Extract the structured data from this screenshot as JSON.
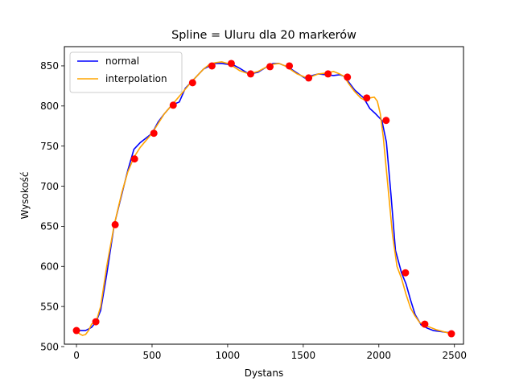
{
  "chart_data": {
    "type": "line",
    "title": "Spline = Uluru dla 20 markerów",
    "xlabel": "Dystans",
    "ylabel": "Wysokość",
    "xlim": [
      -80,
      2560
    ],
    "ylim": [
      503,
      874
    ],
    "xticks": [
      0,
      500,
      1000,
      1500,
      2000,
      2500
    ],
    "yticks": [
      500,
      550,
      600,
      650,
      700,
      750,
      800,
      850
    ],
    "grid": false,
    "legend_position": "top-left",
    "series": [
      {
        "name": "normal",
        "color": "#0000ff",
        "x": [
          0,
          60,
          100,
          130,
          160,
          200,
          250,
          300,
          340,
          380,
          420,
          460,
          500,
          540,
          580,
          630,
          680,
          720,
          760,
          800,
          840,
          880,
          920,
          960,
          1000,
          1040,
          1080,
          1140,
          1200,
          1260,
          1300,
          1340,
          1380,
          1420,
          1460,
          1510,
          1560,
          1600,
          1650,
          1700,
          1740,
          1770,
          1800,
          1840,
          1900,
          1940,
          1980,
          2020,
          2050,
          2080,
          2110,
          2150,
          2180,
          2210,
          2240,
          2280,
          2320,
          2360,
          2400,
          2440,
          2480
        ],
        "y": [
          520,
          520,
          524,
          531,
          545,
          590,
          652,
          690,
          720,
          746,
          754,
          760,
          766,
          780,
          790,
          801,
          805,
          822,
          830,
          838,
          846,
          850,
          853,
          853,
          852,
          851,
          847,
          840,
          842,
          849,
          853,
          853,
          850,
          846,
          841,
          835,
          838,
          840,
          839,
          838,
          839,
          837,
          830,
          820,
          810,
          797,
          790,
          782,
          755,
          690,
          620,
          592,
          578,
          558,
          540,
          527,
          523,
          520,
          519,
          518,
          517
        ]
      },
      {
        "name": "interpolation",
        "color": "#ffa500",
        "x": [
          0,
          20,
          40,
          60,
          80,
          100,
          130,
          160,
          200,
          250,
          300,
          340,
          380,
          420,
          460,
          500,
          540,
          580,
          630,
          680,
          720,
          760,
          800,
          840,
          880,
          920,
          960,
          1000,
          1040,
          1080,
          1140,
          1200,
          1260,
          1300,
          1340,
          1380,
          1420,
          1460,
          1510,
          1560,
          1600,
          1650,
          1700,
          1740,
          1770,
          1800,
          1840,
          1880,
          1900,
          1940,
          1970,
          1990,
          2010,
          2030,
          2060,
          2090,
          2120,
          2150,
          2180,
          2210,
          2240,
          2270,
          2300,
          2340,
          2380,
          2420,
          2460,
          2480
        ],
        "y": [
          520,
          516,
          514,
          515,
          520,
          528,
          531,
          550,
          600,
          652,
          692,
          718,
          736,
          748,
          757,
          766,
          778,
          790,
          801,
          812,
          821,
          830,
          838,
          846,
          852,
          854,
          855,
          853,
          849,
          844,
          840,
          843,
          849,
          852,
          853,
          850,
          845,
          840,
          836,
          837,
          840,
          841,
          843,
          840,
          837,
          828,
          818,
          810,
          808,
          810,
          811,
          806,
          790,
          760,
          700,
          640,
          600,
          585,
          565,
          548,
          538,
          530,
          527,
          524,
          521,
          519,
          517,
          516
        ]
      }
    ],
    "markers": {
      "color": "#ff0000",
      "x": [
        0,
        128,
        256,
        384,
        512,
        640,
        768,
        896,
        1024,
        1152,
        1280,
        1408,
        1536,
        1664,
        1792,
        1920,
        2048,
        2176,
        2304,
        2480
      ],
      "y": [
        520,
        531,
        652,
        734,
        766,
        801,
        829,
        850,
        853,
        840,
        849,
        850,
        835,
        840,
        836,
        810,
        782,
        592,
        528,
        516
      ]
    }
  }
}
